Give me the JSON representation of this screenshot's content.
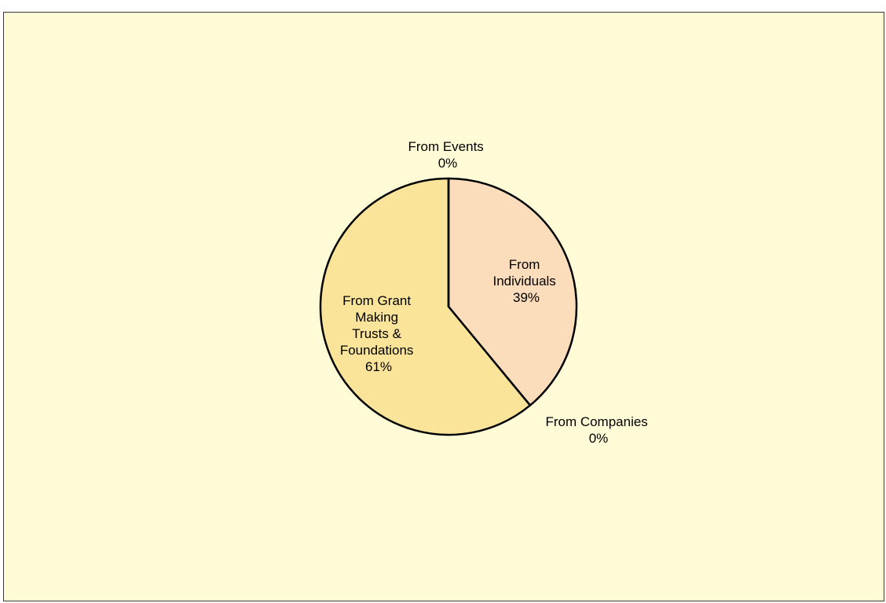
{
  "chart_data": {
    "type": "pie",
    "slices": [
      {
        "name": "From Individuals",
        "label_lines": [
          "From",
          "Individuals",
          "39%"
        ],
        "value": 39,
        "color": "#fbdcbb"
      },
      {
        "name": "From Companies",
        "label_lines": [
          "From Companies",
          "0%"
        ],
        "value": 0,
        "color": "#fbdcbb"
      },
      {
        "name": "From Grant Making Trusts & Foundations",
        "label_lines": [
          "From Grant",
          "Making",
          "Trusts &",
          "Foundations",
          "61%"
        ],
        "value": 61,
        "color": "#fae49a"
      },
      {
        "name": "From Events",
        "label_lines": [
          "From Events",
          "0%"
        ],
        "value": 0,
        "color": "#fae49a"
      }
    ],
    "start": "12 o'clock",
    "direction": "clockwise",
    "background": "#fffbd6"
  }
}
